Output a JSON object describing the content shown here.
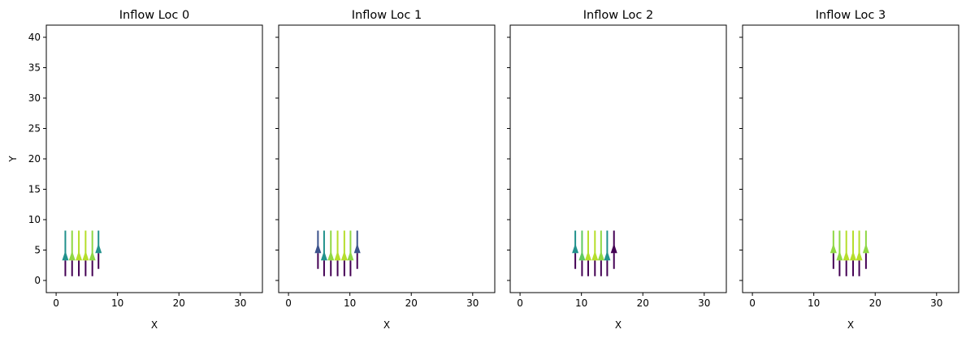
{
  "chart_data": [
    {
      "type": "quiver",
      "title": "Inflow Loc 0",
      "xlabel": "X",
      "ylabel": "Y",
      "xlim": [
        -1.6,
        33.6
      ],
      "ylim": [
        -2,
        42
      ],
      "xticks": [
        0,
        10,
        20,
        30
      ],
      "yticks": [
        0,
        5,
        10,
        15,
        20,
        25,
        30,
        35,
        40
      ],
      "arrows": [
        {
          "x": 1.5,
          "y": 3.3,
          "color": "#21918c"
        },
        {
          "x": 2.6,
          "y": 3.3,
          "color": "#8fd744"
        },
        {
          "x": 3.7,
          "y": 3.3,
          "color": "#b5de2b"
        },
        {
          "x": 4.8,
          "y": 3.3,
          "color": "#b5de2b"
        },
        {
          "x": 5.9,
          "y": 3.3,
          "color": "#8fd744"
        },
        {
          "x": 6.9,
          "y": 4.5,
          "color": "#21918c"
        }
      ]
    },
    {
      "type": "quiver",
      "title": "Inflow Loc 1",
      "xlabel": "X",
      "ylabel": "",
      "xlim": [
        -1.6,
        33.6
      ],
      "ylim": [
        -2,
        42
      ],
      "xticks": [
        0,
        10,
        20,
        30
      ],
      "yticks": [
        0,
        5,
        10,
        15,
        20,
        25,
        30,
        35,
        40
      ],
      "arrows": [
        {
          "x": 4.8,
          "y": 4.5,
          "color": "#3b528b"
        },
        {
          "x": 5.8,
          "y": 3.3,
          "color": "#21918c"
        },
        {
          "x": 6.9,
          "y": 3.3,
          "color": "#8fd744"
        },
        {
          "x": 8.0,
          "y": 3.3,
          "color": "#b5de2b"
        },
        {
          "x": 9.1,
          "y": 3.3,
          "color": "#b5de2b"
        },
        {
          "x": 10.1,
          "y": 3.3,
          "color": "#8fd744"
        },
        {
          "x": 11.2,
          "y": 4.5,
          "color": "#3b528b"
        }
      ]
    },
    {
      "type": "quiver",
      "title": "Inflow Loc 2",
      "xlabel": "X",
      "ylabel": "",
      "xlim": [
        -1.6,
        33.6
      ],
      "ylim": [
        -2,
        42
      ],
      "xticks": [
        0,
        10,
        20,
        30
      ],
      "yticks": [
        0,
        5,
        10,
        15,
        20,
        25,
        30,
        35,
        40
      ],
      "arrows": [
        {
          "x": 9.0,
          "y": 4.5,
          "color": "#21918c"
        },
        {
          "x": 10.1,
          "y": 3.3,
          "color": "#5ec962"
        },
        {
          "x": 11.1,
          "y": 3.3,
          "color": "#b5de2b"
        },
        {
          "x": 12.2,
          "y": 3.3,
          "color": "#b5de2b"
        },
        {
          "x": 13.2,
          "y": 3.3,
          "color": "#8fd744"
        },
        {
          "x": 14.2,
          "y": 3.3,
          "color": "#21918c"
        },
        {
          "x": 15.3,
          "y": 4.5,
          "color": "#440154"
        }
      ]
    },
    {
      "type": "quiver",
      "title": "Inflow Loc 3",
      "xlabel": "X",
      "ylabel": "",
      "xlim": [
        -1.6,
        33.6
      ],
      "ylim": [
        -2,
        42
      ],
      "xticks": [
        0,
        10,
        20,
        30
      ],
      "yticks": [
        0,
        5,
        10,
        15,
        20,
        25,
        30,
        35,
        40
      ],
      "arrows": [
        {
          "x": 13.2,
          "y": 4.5,
          "color": "#8fd744"
        },
        {
          "x": 14.2,
          "y": 3.3,
          "color": "#8fd744"
        },
        {
          "x": 15.3,
          "y": 3.3,
          "color": "#b5de2b"
        },
        {
          "x": 16.4,
          "y": 3.3,
          "color": "#b5de2b"
        },
        {
          "x": 17.4,
          "y": 3.3,
          "color": "#b5de2b"
        },
        {
          "x": 18.5,
          "y": 4.5,
          "color": "#8fd744"
        }
      ]
    }
  ]
}
